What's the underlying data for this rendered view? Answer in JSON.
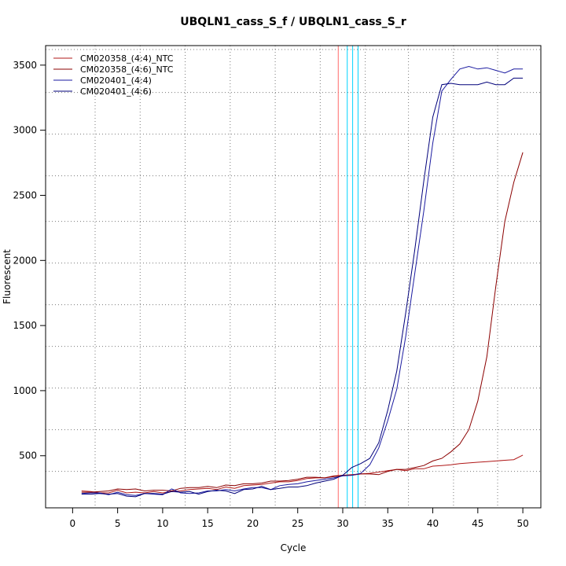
{
  "chart_data": {
    "type": "line",
    "title": "UBQLN1_cass_S_f / UBQLN1_cass_S_r",
    "xlabel": "Cycle",
    "ylabel": "Fluorescent",
    "xlim": [
      -3,
      52
    ],
    "ylim": [
      100,
      3650
    ],
    "x_ticks": [
      0,
      5,
      10,
      15,
      20,
      25,
      30,
      35,
      40,
      45,
      50
    ],
    "y_ticks": [
      500,
      1000,
      1500,
      2000,
      2500,
      3000,
      3500
    ],
    "grid": true,
    "grid_x": [
      2.5,
      7.5,
      12.5,
      17.5,
      22.5,
      27.5,
      32.5,
      37.3,
      42.3,
      47.2
    ],
    "grid_y": [
      380,
      700,
      1020,
      1340,
      1660,
      1980,
      2300,
      2650,
      2970,
      3290,
      3620
    ],
    "legend_position": "top-left",
    "threshold_lines": [
      {
        "x": 29.5,
        "color": "#ff6b6b"
      },
      {
        "x": 30.5,
        "color": "#00d4ff"
      },
      {
        "x": 31.1,
        "color": "#00d4ff"
      },
      {
        "x": 31.7,
        "color": "#00d4ff"
      }
    ],
    "x": [
      1,
      2,
      3,
      4,
      5,
      6,
      7,
      8,
      9,
      10,
      11,
      12,
      13,
      14,
      15,
      16,
      17,
      18,
      19,
      20,
      21,
      22,
      23,
      24,
      25,
      26,
      27,
      28,
      29,
      30,
      31,
      32,
      33,
      34,
      35,
      36,
      37,
      38,
      39,
      40,
      41,
      42,
      43,
      44,
      45,
      46,
      47,
      48,
      49,
      50
    ],
    "series": [
      {
        "name": "CM020358_(4:4)_NTC",
        "color": "#b01818",
        "values": [
          230,
          225,
          215,
          215,
          235,
          215,
          220,
          215,
          225,
          215,
          225,
          230,
          240,
          245,
          250,
          240,
          260,
          250,
          270,
          275,
          280,
          290,
          300,
          300,
          310,
          325,
          330,
          330,
          345,
          350,
          355,
          360,
          365,
          375,
          385,
          395,
          385,
          400,
          400,
          420,
          425,
          430,
          440,
          445,
          450,
          455,
          460,
          465,
          470,
          505
        ]
      },
      {
        "name": "CM020358_(4:6)_NTC",
        "color": "#8b0000",
        "values": [
          220,
          220,
          225,
          230,
          245,
          240,
          245,
          230,
          235,
          235,
          230,
          250,
          255,
          255,
          265,
          255,
          275,
          270,
          285,
          285,
          290,
          305,
          305,
          310,
          320,
          335,
          335,
          330,
          340,
          350,
          350,
          360,
          360,
          355,
          380,
          395,
          395,
          410,
          425,
          460,
          480,
          530,
          590,
          700,
          920,
          1260,
          1800,
          2300,
          2600,
          2830
        ]
      },
      {
        "name": "CM020401_(4:4)",
        "color": "#1a1aa0",
        "values": [
          210,
          215,
          215,
          200,
          220,
          200,
          195,
          210,
          205,
          200,
          245,
          215,
          210,
          215,
          230,
          230,
          240,
          230,
          245,
          255,
          255,
          240,
          270,
          280,
          285,
          300,
          310,
          320,
          330,
          345,
          350,
          365,
          430,
          560,
          770,
          1010,
          1420,
          1900,
          2380,
          2900,
          3300,
          3390,
          3470,
          3490,
          3470,
          3480,
          3460,
          3440,
          3470,
          3470
        ]
      },
      {
        "name": "CM020401_(4:6)",
        "color": "#00007a",
        "values": [
          205,
          205,
          210,
          205,
          210,
          190,
          185,
          210,
          210,
          205,
          225,
          220,
          225,
          205,
          225,
          235,
          230,
          210,
          240,
          245,
          265,
          240,
          250,
          260,
          260,
          270,
          290,
          305,
          320,
          350,
          410,
          440,
          480,
          600,
          850,
          1150,
          1600,
          2080,
          2610,
          3100,
          3350,
          3360,
          3350,
          3350,
          3350,
          3370,
          3350,
          3350,
          3400,
          3400
        ]
      }
    ]
  }
}
